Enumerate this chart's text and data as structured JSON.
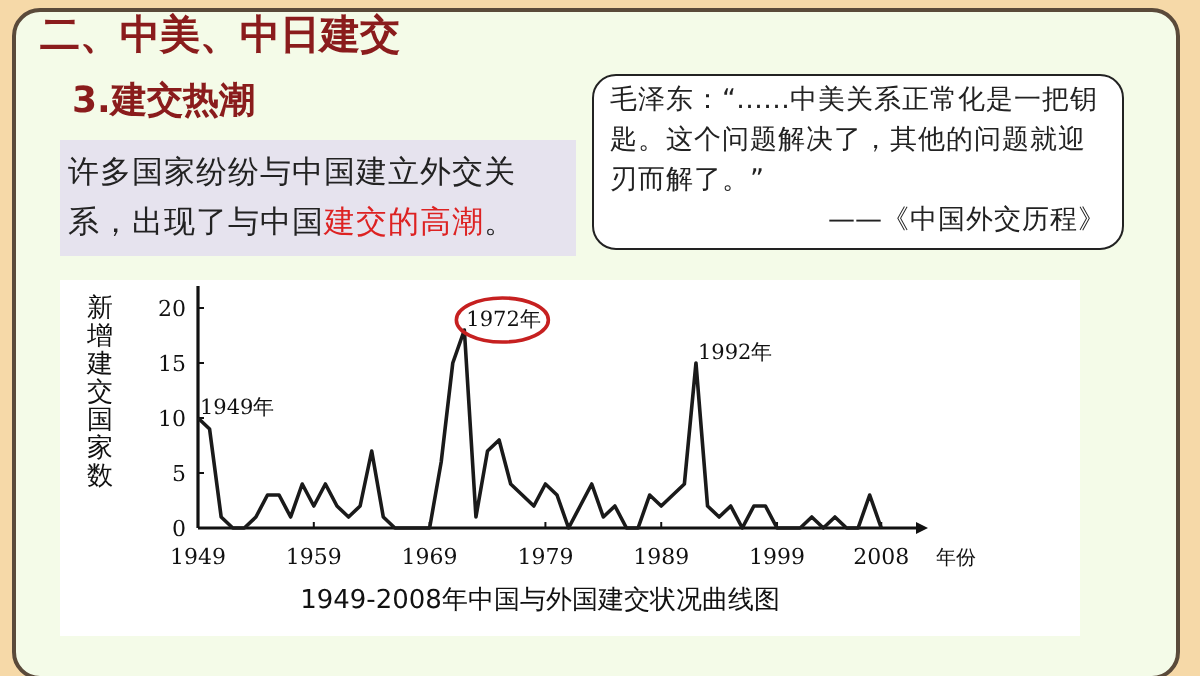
{
  "chart_data": {
    "type": "line",
    "title": "1949-2008年中国与外国建交状况曲线图",
    "xlabel": "年份",
    "ylabel": "新增建交国家数",
    "color": "#1a1a1a",
    "x": [
      1949,
      1950,
      1951,
      1952,
      1953,
      1954,
      1955,
      1956,
      1957,
      1958,
      1959,
      1960,
      1961,
      1962,
      1963,
      1964,
      1965,
      1966,
      1967,
      1968,
      1969,
      1970,
      1971,
      1972,
      1973,
      1974,
      1975,
      1976,
      1977,
      1978,
      1979,
      1980,
      1981,
      1982,
      1983,
      1984,
      1985,
      1986,
      1987,
      1988,
      1989,
      1990,
      1991,
      1992,
      1993,
      1994,
      1995,
      1996,
      1997,
      1998,
      1999,
      2000,
      2001,
      2002,
      2003,
      2004,
      2005,
      2006,
      2007,
      2008
    ],
    "values": [
      10,
      9,
      1,
      0,
      0,
      1,
      3,
      3,
      1,
      4,
      2,
      4,
      2,
      1,
      2,
      7,
      1,
      0,
      0,
      0,
      0,
      6,
      15,
      18,
      1,
      7,
      8,
      4,
      3,
      2,
      4,
      3,
      0,
      2,
      4,
      1,
      2,
      0,
      0,
      3,
      2,
      3,
      4,
      15,
      2,
      1,
      2,
      0,
      2,
      2,
      0,
      0,
      0,
      1,
      0,
      1,
      0,
      0,
      3,
      0
    ],
    "xlim": [
      1949,
      2011
    ],
    "ylim": [
      0,
      22
    ],
    "xticks": [
      1949,
      1959,
      1969,
      1979,
      1989,
      1999,
      2008
    ],
    "yticks": [
      0,
      5,
      10,
      15,
      20
    ],
    "annotations": [
      "二、中美、中日建交",
      "3.建交热潮",
      "许多国家纷纷与中国建立外交关系，出现了与中国",
      "建交的高潮",
      "。",
      "毛泽东：“……中美关系正常化是一把钥匙。这个问题解决了，其他的问题就迎刃而解了。”",
      "——《中国外交历程》",
      {
        "text": "1949年",
        "x": 1949,
        "y": 10
      },
      {
        "text": "1972年",
        "x": 1972,
        "y": 18
      },
      {
        "text": "1992年",
        "x": 1992,
        "y": 15
      }
    ]
  }
}
